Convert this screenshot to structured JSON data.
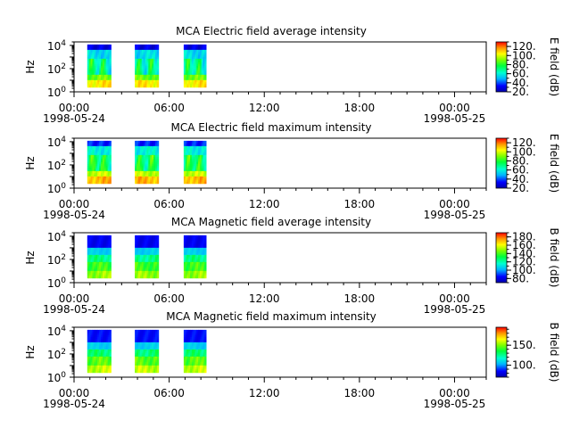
{
  "chart_data": [
    {
      "type": "heatmap",
      "title": "MCA  Electric field average intensity",
      "ylabel": "Hz",
      "y_scale": "log",
      "ylim": [
        1,
        20000
      ],
      "y_ticks": [
        {
          "base": "10",
          "exp": "0"
        },
        {
          "base": "10",
          "exp": "2"
        },
        {
          "base": "10",
          "exp": "4"
        }
      ],
      "x_ticks": [
        "00:00",
        "06:00",
        "12:00",
        "18:00",
        "00:00"
      ],
      "x_dates": [
        {
          "text": "1998-05-24",
          "at": "00:00"
        },
        {
          "text": "1998-05-25",
          "at": "00:00"
        }
      ],
      "xlim": [
        "1998-05-24T00:00",
        "1998-05-25T02:00"
      ],
      "colorbar": {
        "label": "E field (dB)",
        "range": [
          20,
          130
        ],
        "ticks": [
          "20.",
          "40.",
          "60.",
          "80.",
          "100.",
          "120."
        ],
        "colormap": "rainbow"
      },
      "data_intervals": [
        {
          "start": "1998-05-24T00:50",
          "end": "1998-05-24T02:20"
        },
        {
          "start": "1998-05-24T03:50",
          "end": "1998-05-24T05:20"
        },
        {
          "start": "1998-05-24T06:55",
          "end": "1998-05-24T08:20"
        }
      ],
      "pattern": "e_avg"
    },
    {
      "type": "heatmap",
      "title": "MCA  Electric field maximum intensity",
      "ylabel": "Hz",
      "y_scale": "log",
      "ylim": [
        1,
        20000
      ],
      "y_ticks": [
        {
          "base": "10",
          "exp": "0"
        },
        {
          "base": "10",
          "exp": "2"
        },
        {
          "base": "10",
          "exp": "4"
        }
      ],
      "x_ticks": [
        "00:00",
        "06:00",
        "12:00",
        "18:00",
        "00:00"
      ],
      "x_dates": [
        {
          "text": "1998-05-24",
          "at": "00:00"
        },
        {
          "text": "1998-05-25",
          "at": "00:00"
        }
      ],
      "xlim": [
        "1998-05-24T00:00",
        "1998-05-25T02:00"
      ],
      "colorbar": {
        "label": "E field (dB)",
        "range": [
          20,
          130
        ],
        "ticks": [
          "20.",
          "40.",
          "60.",
          "80.",
          "100.",
          "120."
        ],
        "colormap": "rainbow"
      },
      "data_intervals": [
        {
          "start": "1998-05-24T00:50",
          "end": "1998-05-24T02:20"
        },
        {
          "start": "1998-05-24T03:50",
          "end": "1998-05-24T05:20"
        },
        {
          "start": "1998-05-24T06:55",
          "end": "1998-05-24T08:20"
        }
      ],
      "pattern": "e_max"
    },
    {
      "type": "heatmap",
      "title": "MCA  Magnetic field average intensity",
      "ylabel": "Hz",
      "y_scale": "log",
      "ylim": [
        1,
        20000
      ],
      "y_ticks": [
        {
          "base": "10",
          "exp": "0"
        },
        {
          "base": "10",
          "exp": "2"
        },
        {
          "base": "10",
          "exp": "4"
        }
      ],
      "x_ticks": [
        "00:00",
        "06:00",
        "12:00",
        "18:00",
        "00:00"
      ],
      "x_dates": [
        {
          "text": "1998-05-24",
          "at": "00:00"
        },
        {
          "text": "1998-05-25",
          "at": "00:00"
        }
      ],
      "xlim": [
        "1998-05-24T00:00",
        "1998-05-25T02:00"
      ],
      "colorbar": {
        "label": "B field (dB)",
        "range": [
          70,
          190
        ],
        "ticks": [
          "80.",
          "100.",
          "120.",
          "140.",
          "160.",
          "180."
        ],
        "colormap": "rainbow"
      },
      "data_intervals": [
        {
          "start": "1998-05-24T00:50",
          "end": "1998-05-24T02:20"
        },
        {
          "start": "1998-05-24T03:50",
          "end": "1998-05-24T05:20"
        },
        {
          "start": "1998-05-24T06:55",
          "end": "1998-05-24T08:20"
        }
      ],
      "pattern": "b_avg"
    },
    {
      "type": "heatmap",
      "title": "MCA  Magnetic field maximum intensity",
      "ylabel": "Hz",
      "y_scale": "log",
      "ylim": [
        1,
        20000
      ],
      "y_ticks": [
        {
          "base": "10",
          "exp": "0"
        },
        {
          "base": "10",
          "exp": "2"
        },
        {
          "base": "10",
          "exp": "4"
        }
      ],
      "x_ticks": [
        "00:00",
        "06:00",
        "12:00",
        "18:00",
        "00:00"
      ],
      "x_dates": [
        {
          "text": "1998-05-24",
          "at": "00:00"
        },
        {
          "text": "1998-05-25",
          "at": "00:00"
        }
      ],
      "xlim": [
        "1998-05-24T00:00",
        "1998-05-25T02:00"
      ],
      "colorbar": {
        "label": "B field (dB)",
        "range": [
          70,
          195
        ],
        "ticks": [
          "100.",
          "150."
        ],
        "colormap": "rainbow"
      },
      "data_intervals": [
        {
          "start": "1998-05-24T00:50",
          "end": "1998-05-24T02:20"
        },
        {
          "start": "1998-05-24T03:50",
          "end": "1998-05-24T05:20"
        },
        {
          "start": "1998-05-24T06:55",
          "end": "1998-05-24T08:20"
        }
      ],
      "pattern": "b_max"
    }
  ]
}
